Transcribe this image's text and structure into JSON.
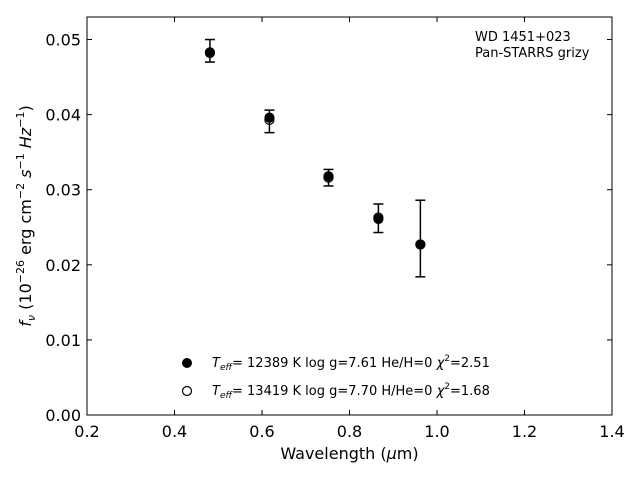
{
  "chart_data": {
    "type": "scatter",
    "title": "",
    "xlabel_parts": {
      "pre": "Wavelength (",
      "mu": "μ",
      "post": "m)"
    },
    "ylabel_parts": {
      "fnu": "f",
      "nu": "ν",
      "unit1": " (10",
      "exp1": "−26",
      "unit2": " erg cm",
      "exp2": "−2",
      "unit3": " s",
      "exp3": "−1",
      "unit4": " Hz",
      "exp4": "−1",
      "unit5": ")"
    },
    "xlim": [
      0.2,
      1.4
    ],
    "ylim": [
      0.0,
      0.053
    ],
    "xticks": [
      0.2,
      0.4,
      0.6,
      0.8,
      1.0,
      1.2,
      1.4
    ],
    "xtick_labels": [
      "0.2",
      "0.4",
      "0.6",
      "0.8",
      "1.0",
      "1.2",
      "1.4"
    ],
    "yticks": [
      0.0,
      0.01,
      0.02,
      0.03,
      0.04,
      0.05
    ],
    "ytick_labels": [
      "0.00",
      "0.01",
      "0.02",
      "0.03",
      "0.04",
      "0.05"
    ],
    "grid": false,
    "annotation": [
      "WD 1451+023",
      "Pan-STARRS grizy"
    ],
    "observed": {
      "x": [
        0.481,
        0.617,
        0.752,
        0.866,
        0.962
      ],
      "y": [
        0.0485,
        0.0391,
        0.0316,
        0.0262,
        0.0235
      ],
      "yerr": [
        0.0015,
        0.0015,
        0.0011,
        0.0019,
        0.0051
      ]
    },
    "series": [
      {
        "marker": "filled-circle",
        "legend_label": {
          "T": "T",
          "eff": "eff",
          "rest": "= 12389 K  log g=7.61  He/H=0  ",
          "chi": "χ",
          "two": "2",
          "chival": "=2.51"
        },
        "x": [
          0.481,
          0.617,
          0.752,
          0.866,
          0.962
        ],
        "y": [
          0.0483,
          0.0396,
          0.0318,
          0.0261,
          0.0227
        ]
      },
      {
        "marker": "open-circle",
        "legend_label": {
          "T": "T",
          "eff": "eff",
          "rest": "= 13419 K  log g=7.70  H/He=0  ",
          "chi": "χ",
          "two": "2",
          "chival": "=1.68"
        },
        "x": [
          0.481,
          0.617,
          0.752,
          0.866,
          0.962
        ],
        "y": [
          0.0482,
          0.0393,
          0.0316,
          0.0263,
          0.0227
        ]
      }
    ],
    "legend_position": "lower-center",
    "colors": {
      "marker": "#000000",
      "axis": "#000000"
    }
  }
}
